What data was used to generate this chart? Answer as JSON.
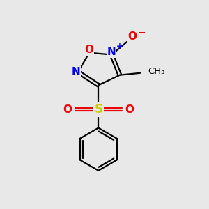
{
  "bg_color": "#e8e8e8",
  "bond_color": "#000000",
  "N_color": "#0000ee",
  "O_color": "#ee0000",
  "S_color": "#cccc00",
  "figsize": [
    3.0,
    3.0
  ],
  "dpi": 100,
  "xlim": [
    0,
    10
  ],
  "ylim": [
    0,
    10
  ]
}
